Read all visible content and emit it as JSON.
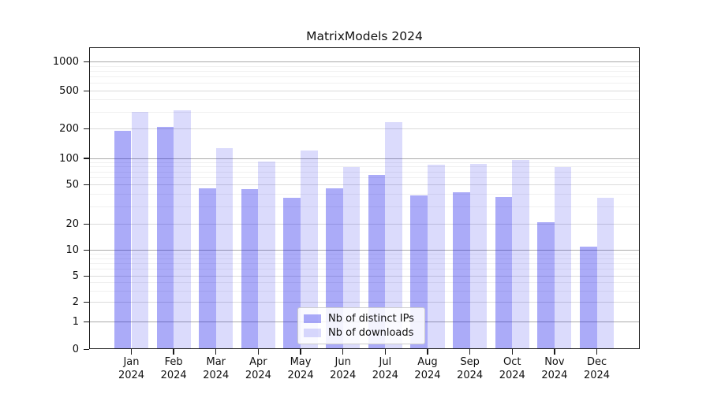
{
  "title": "MatrixModels 2024",
  "chart_data": {
    "type": "bar",
    "title": "MatrixModels 2024",
    "categories": [
      "Jan",
      "Feb",
      "Mar",
      "Apr",
      "May",
      "Jun",
      "Jul",
      "Aug",
      "Sep",
      "Oct",
      "Nov",
      "Dec"
    ],
    "x_tick_year": "2024",
    "series": [
      {
        "name": "Nb of distinct IPs",
        "color_hex": "#aaaaf8",
        "fill": "rgba(15,15,235,0.35)",
        "values": [
          190,
          207,
          46,
          45,
          37,
          46,
          65,
          39,
          42,
          38,
          21,
          11
        ]
      },
      {
        "name": "Nb of downloads",
        "color_hex": "#d9d9fa",
        "fill": "rgba(15,15,235,0.15)",
        "values": [
          298,
          315,
          128,
          92,
          121,
          80,
          235,
          85,
          86,
          95,
          80,
          37
        ]
      }
    ],
    "yscale": "symlog",
    "yticks": [
      0,
      1,
      2,
      5,
      10,
      20,
      50,
      100,
      200,
      500,
      1000
    ],
    "ylim": [
      0,
      1400
    ],
    "grid": "on",
    "legend_position": "lower center"
  }
}
